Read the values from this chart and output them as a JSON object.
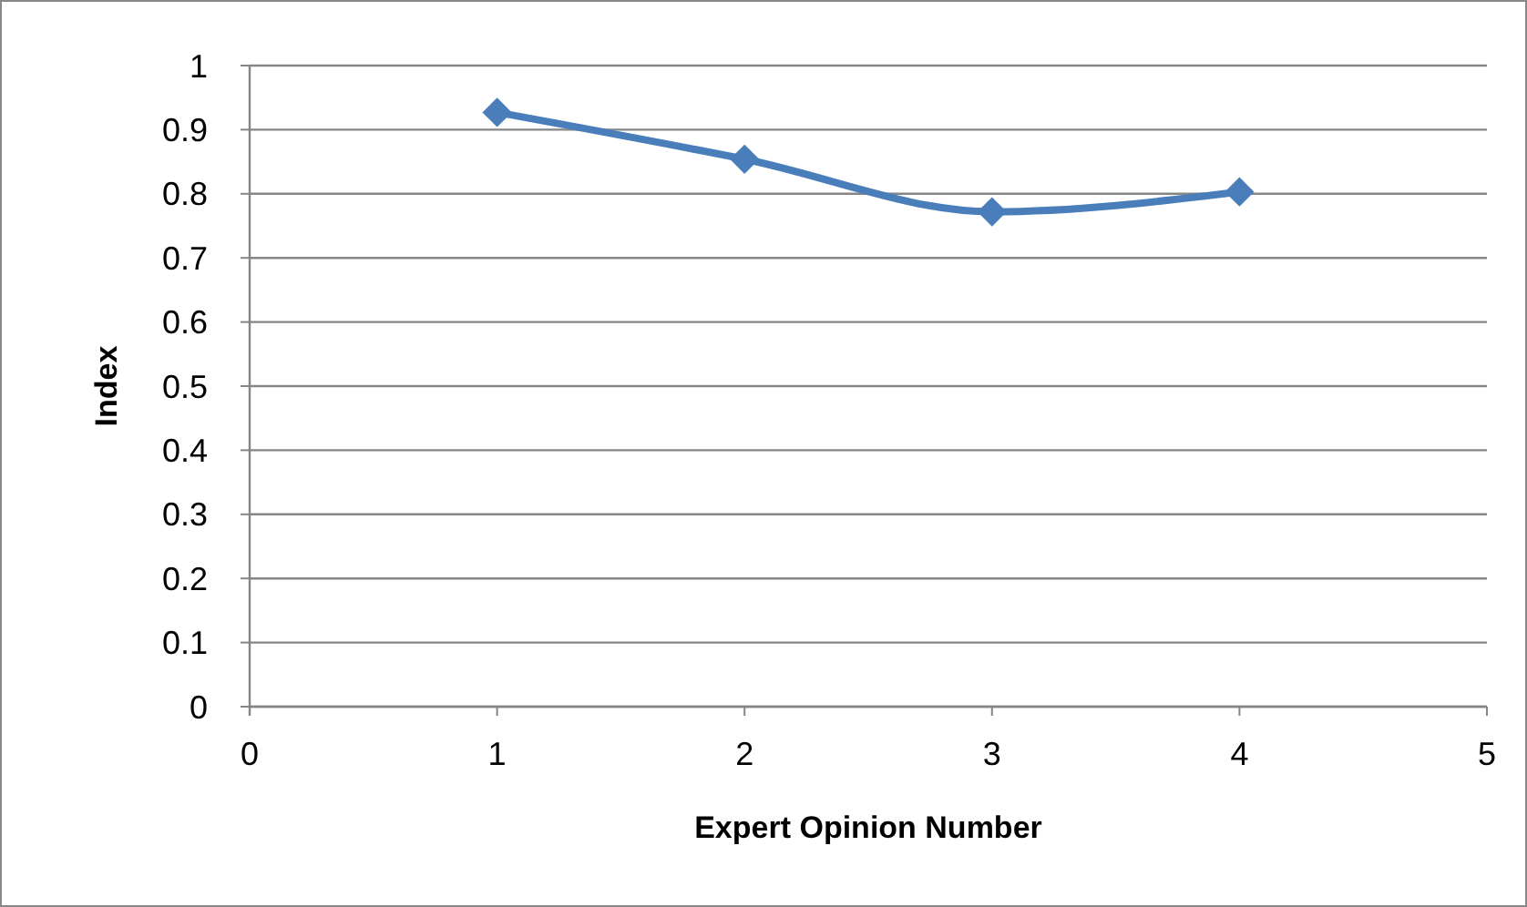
{
  "chart_data": {
    "type": "line",
    "xlabel": "Expert Opinion Number",
    "ylabel": "Index",
    "x": [
      1,
      2,
      3,
      4
    ],
    "series": [
      {
        "color": "#4a7ebb",
        "values": [
          0.927,
          0.854,
          0.772,
          0.803
        ]
      }
    ],
    "xlim": [
      0,
      5
    ],
    "xticks": [
      0,
      1,
      2,
      3,
      4,
      5
    ],
    "ylim": [
      0,
      1
    ],
    "yticks": [
      0,
      0.1,
      0.2,
      0.3,
      0.4,
      0.5,
      0.6,
      0.7,
      0.8,
      0.9,
      1
    ],
    "grid": "y",
    "marker": "diamond",
    "line_style": "solid"
  }
}
